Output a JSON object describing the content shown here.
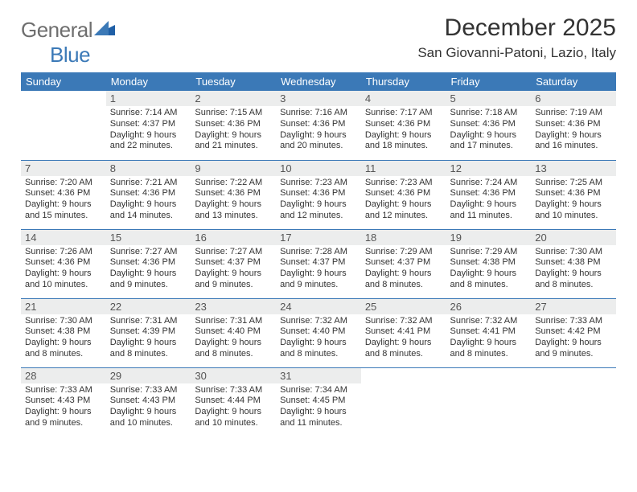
{
  "brand": {
    "part1": "General",
    "part2": "Blue",
    "color": "#3b79b7",
    "gray": "#6e6e6e"
  },
  "title": "December 2025",
  "location": "San Giovanni-Patoni, Lazio, Italy",
  "header_bg": "#3b79b7",
  "daynum_bg": "#eceded",
  "border_color": "#3b79b7",
  "day_headers": [
    "Sunday",
    "Monday",
    "Tuesday",
    "Wednesday",
    "Thursday",
    "Friday",
    "Saturday"
  ],
  "weeks": [
    [
      {
        "n": "",
        "empty": true
      },
      {
        "n": "1",
        "sr": "Sunrise: 7:14 AM",
        "ss": "Sunset: 4:37 PM",
        "d1": "Daylight: 9 hours",
        "d2": "and 22 minutes."
      },
      {
        "n": "2",
        "sr": "Sunrise: 7:15 AM",
        "ss": "Sunset: 4:36 PM",
        "d1": "Daylight: 9 hours",
        "d2": "and 21 minutes."
      },
      {
        "n": "3",
        "sr": "Sunrise: 7:16 AM",
        "ss": "Sunset: 4:36 PM",
        "d1": "Daylight: 9 hours",
        "d2": "and 20 minutes."
      },
      {
        "n": "4",
        "sr": "Sunrise: 7:17 AM",
        "ss": "Sunset: 4:36 PM",
        "d1": "Daylight: 9 hours",
        "d2": "and 18 minutes."
      },
      {
        "n": "5",
        "sr": "Sunrise: 7:18 AM",
        "ss": "Sunset: 4:36 PM",
        "d1": "Daylight: 9 hours",
        "d2": "and 17 minutes."
      },
      {
        "n": "6",
        "sr": "Sunrise: 7:19 AM",
        "ss": "Sunset: 4:36 PM",
        "d1": "Daylight: 9 hours",
        "d2": "and 16 minutes."
      }
    ],
    [
      {
        "n": "7",
        "sr": "Sunrise: 7:20 AM",
        "ss": "Sunset: 4:36 PM",
        "d1": "Daylight: 9 hours",
        "d2": "and 15 minutes."
      },
      {
        "n": "8",
        "sr": "Sunrise: 7:21 AM",
        "ss": "Sunset: 4:36 PM",
        "d1": "Daylight: 9 hours",
        "d2": "and 14 minutes."
      },
      {
        "n": "9",
        "sr": "Sunrise: 7:22 AM",
        "ss": "Sunset: 4:36 PM",
        "d1": "Daylight: 9 hours",
        "d2": "and 13 minutes."
      },
      {
        "n": "10",
        "sr": "Sunrise: 7:23 AM",
        "ss": "Sunset: 4:36 PM",
        "d1": "Daylight: 9 hours",
        "d2": "and 12 minutes."
      },
      {
        "n": "11",
        "sr": "Sunrise: 7:23 AM",
        "ss": "Sunset: 4:36 PM",
        "d1": "Daylight: 9 hours",
        "d2": "and 12 minutes."
      },
      {
        "n": "12",
        "sr": "Sunrise: 7:24 AM",
        "ss": "Sunset: 4:36 PM",
        "d1": "Daylight: 9 hours",
        "d2": "and 11 minutes."
      },
      {
        "n": "13",
        "sr": "Sunrise: 7:25 AM",
        "ss": "Sunset: 4:36 PM",
        "d1": "Daylight: 9 hours",
        "d2": "and 10 minutes."
      }
    ],
    [
      {
        "n": "14",
        "sr": "Sunrise: 7:26 AM",
        "ss": "Sunset: 4:36 PM",
        "d1": "Daylight: 9 hours",
        "d2": "and 10 minutes."
      },
      {
        "n": "15",
        "sr": "Sunrise: 7:27 AM",
        "ss": "Sunset: 4:36 PM",
        "d1": "Daylight: 9 hours",
        "d2": "and 9 minutes."
      },
      {
        "n": "16",
        "sr": "Sunrise: 7:27 AM",
        "ss": "Sunset: 4:37 PM",
        "d1": "Daylight: 9 hours",
        "d2": "and 9 minutes."
      },
      {
        "n": "17",
        "sr": "Sunrise: 7:28 AM",
        "ss": "Sunset: 4:37 PM",
        "d1": "Daylight: 9 hours",
        "d2": "and 9 minutes."
      },
      {
        "n": "18",
        "sr": "Sunrise: 7:29 AM",
        "ss": "Sunset: 4:37 PM",
        "d1": "Daylight: 9 hours",
        "d2": "and 8 minutes."
      },
      {
        "n": "19",
        "sr": "Sunrise: 7:29 AM",
        "ss": "Sunset: 4:38 PM",
        "d1": "Daylight: 9 hours",
        "d2": "and 8 minutes."
      },
      {
        "n": "20",
        "sr": "Sunrise: 7:30 AM",
        "ss": "Sunset: 4:38 PM",
        "d1": "Daylight: 9 hours",
        "d2": "and 8 minutes."
      }
    ],
    [
      {
        "n": "21",
        "sr": "Sunrise: 7:30 AM",
        "ss": "Sunset: 4:38 PM",
        "d1": "Daylight: 9 hours",
        "d2": "and 8 minutes."
      },
      {
        "n": "22",
        "sr": "Sunrise: 7:31 AM",
        "ss": "Sunset: 4:39 PM",
        "d1": "Daylight: 9 hours",
        "d2": "and 8 minutes."
      },
      {
        "n": "23",
        "sr": "Sunrise: 7:31 AM",
        "ss": "Sunset: 4:40 PM",
        "d1": "Daylight: 9 hours",
        "d2": "and 8 minutes."
      },
      {
        "n": "24",
        "sr": "Sunrise: 7:32 AM",
        "ss": "Sunset: 4:40 PM",
        "d1": "Daylight: 9 hours",
        "d2": "and 8 minutes."
      },
      {
        "n": "25",
        "sr": "Sunrise: 7:32 AM",
        "ss": "Sunset: 4:41 PM",
        "d1": "Daylight: 9 hours",
        "d2": "and 8 minutes."
      },
      {
        "n": "26",
        "sr": "Sunrise: 7:32 AM",
        "ss": "Sunset: 4:41 PM",
        "d1": "Daylight: 9 hours",
        "d2": "and 8 minutes."
      },
      {
        "n": "27",
        "sr": "Sunrise: 7:33 AM",
        "ss": "Sunset: 4:42 PM",
        "d1": "Daylight: 9 hours",
        "d2": "and 9 minutes."
      }
    ],
    [
      {
        "n": "28",
        "sr": "Sunrise: 7:33 AM",
        "ss": "Sunset: 4:43 PM",
        "d1": "Daylight: 9 hours",
        "d2": "and 9 minutes."
      },
      {
        "n": "29",
        "sr": "Sunrise: 7:33 AM",
        "ss": "Sunset: 4:43 PM",
        "d1": "Daylight: 9 hours",
        "d2": "and 10 minutes."
      },
      {
        "n": "30",
        "sr": "Sunrise: 7:33 AM",
        "ss": "Sunset: 4:44 PM",
        "d1": "Daylight: 9 hours",
        "d2": "and 10 minutes."
      },
      {
        "n": "31",
        "sr": "Sunrise: 7:34 AM",
        "ss": "Sunset: 4:45 PM",
        "d1": "Daylight: 9 hours",
        "d2": "and 11 minutes."
      },
      {
        "n": "",
        "empty": true
      },
      {
        "n": "",
        "empty": true
      },
      {
        "n": "",
        "empty": true
      }
    ]
  ]
}
